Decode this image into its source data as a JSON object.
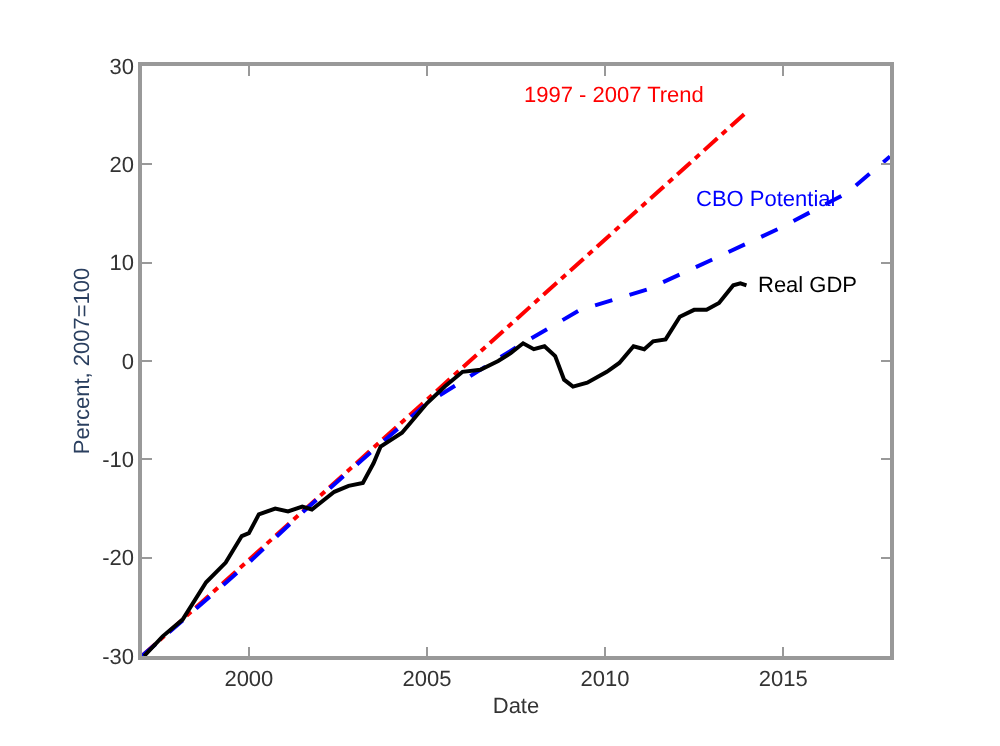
{
  "chart_data": {
    "type": "line",
    "xlabel": "Date",
    "ylabel": "Percent, 2007=100",
    "xlim": [
      1997,
      2018
    ],
    "xticks": [
      2000,
      2005,
      2010,
      2015
    ],
    "ylim": [
      -30,
      30
    ],
    "yticks": [
      -30,
      -20,
      -10,
      0,
      10,
      20,
      30
    ],
    "legend": false,
    "series": [
      {
        "name": "1997 - 2007 Trend",
        "color": "#ff0000",
        "line_style": "dashdot",
        "x": [
          1997,
          2014
        ],
        "values": [
          -30,
          25.4
        ]
      },
      {
        "name": "CBO Potential",
        "color": "#0000ff",
        "line_style": "dashed",
        "x": [
          1997,
          2000,
          2001.5,
          2003.2,
          2005,
          2007.6,
          2009.3,
          2011.2,
          2013,
          2014.9,
          2016.8,
          2018
        ],
        "values": [
          -30,
          -20.5,
          -15.4,
          -10,
          -4.3,
          1.6,
          5.2,
          7.3,
          10.3,
          13.5,
          17.1,
          20.8
        ]
      },
      {
        "name": "Real GDP",
        "color": "#000000",
        "line_style": "solid",
        "x": [
          1997.06,
          1997.58,
          1998.14,
          1998.8,
          1999.35,
          1999.8,
          2000,
          2000.28,
          2000.74,
          2001.1,
          2001.5,
          2001.77,
          2002.4,
          2002.8,
          2003.2,
          2003.5,
          2003.7,
          2004.3,
          2005,
          2005.5,
          2006,
          2006.5,
          2007,
          2007.35,
          2007.7,
          2008,
          2008.3,
          2008.6,
          2008.85,
          2009.1,
          2009.5,
          2010.05,
          2010.4,
          2010.8,
          2011.1,
          2011.35,
          2011.7,
          2012.1,
          2012.5,
          2012.85,
          2013.2,
          2013.6,
          2013.8,
          2013.97
        ],
        "values": [
          -30,
          -28,
          -26.3,
          -22.5,
          -20.5,
          -17.8,
          -17.5,
          -15.6,
          -15,
          -15.3,
          -14.8,
          -15.1,
          -13.3,
          -12.7,
          -12.4,
          -10.4,
          -8.7,
          -7.3,
          -4.3,
          -2.6,
          -1.1,
          -0.9,
          0,
          0.8,
          1.8,
          1.2,
          1.5,
          0.5,
          -1.9,
          -2.6,
          -2.2,
          -1.1,
          -0.2,
          1.5,
          1.2,
          2,
          2.2,
          4.5,
          5.2,
          5.2,
          5.9,
          7.7,
          7.9,
          7.7
        ]
      }
    ]
  }
}
